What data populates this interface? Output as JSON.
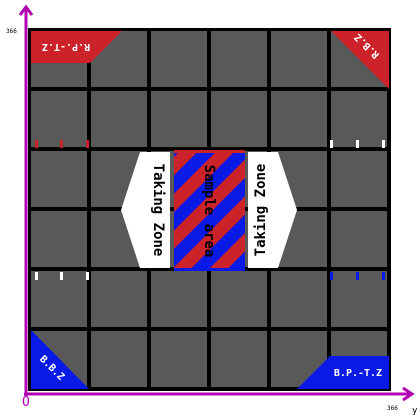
{
  "axes": {
    "origin_label": "O",
    "y_label": "366",
    "x_label": "366",
    "y_axis_name": "y"
  },
  "field": {
    "colors": {
      "tile": "#595959",
      "grid_line": "#000000",
      "red": "#cc2229",
      "blue": "#0a1ae6",
      "white": "#ffffff",
      "axis": "#b000b0"
    }
  },
  "zones": {
    "top_left_label": "R.P.-T.Z",
    "top_right_label": "R.B.Z",
    "bottom_left_label": "B.B.Z",
    "bottom_right_label": "B.P.-T.Z",
    "center_left_label": "Taking Zone",
    "center_right_label": "Taking Zone",
    "sample_area_label": "Sample area"
  }
}
